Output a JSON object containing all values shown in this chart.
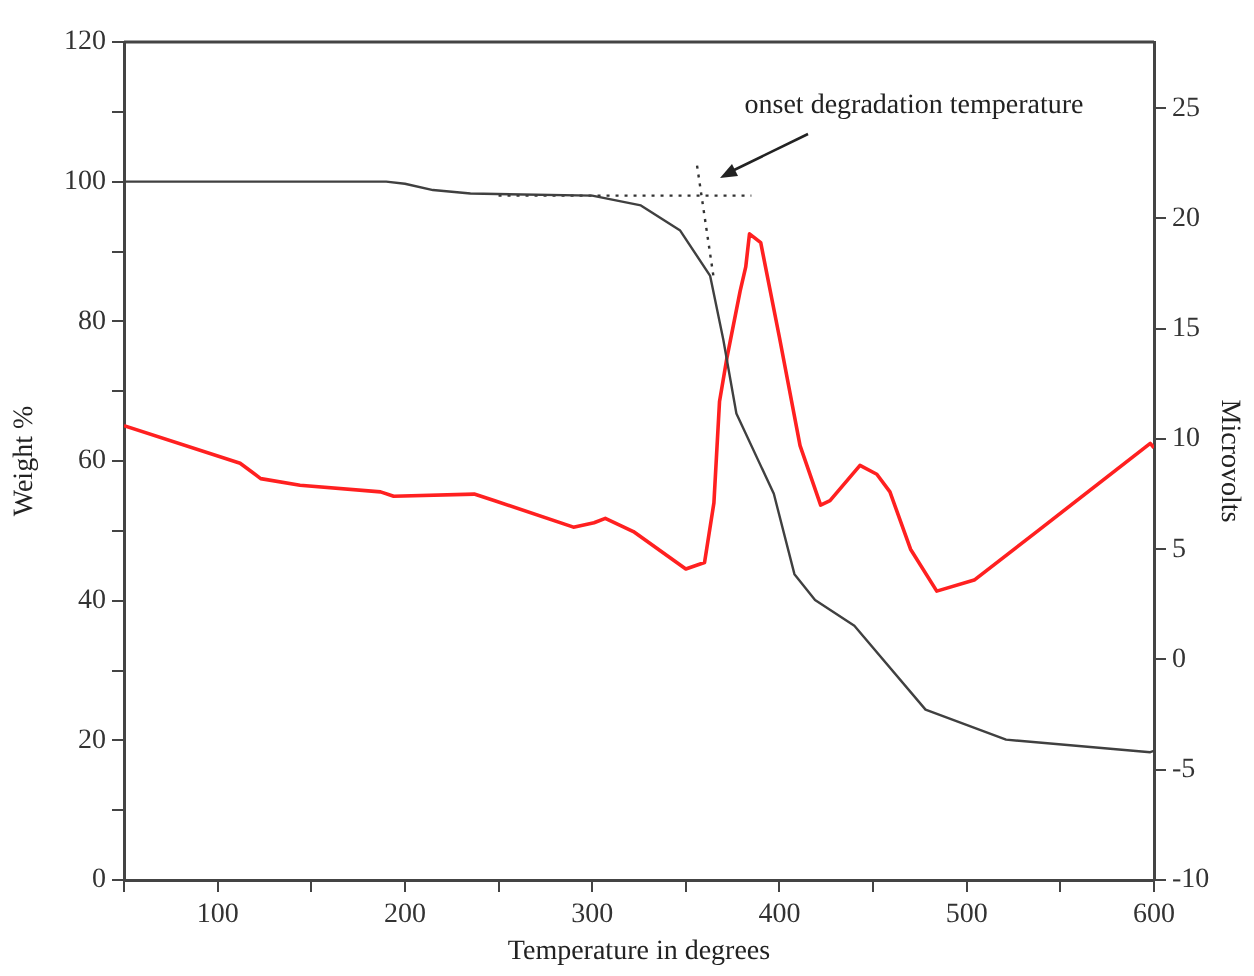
{
  "chart_data": {
    "type": "line",
    "xlabel": "Temperature in degrees",
    "ylabel": "Weight %",
    "y2label": "Microvolts",
    "annotations": [
      "onset degradation temperature"
    ],
    "xlim": [
      50,
      600
    ],
    "xticks": [
      {
        "value": 50,
        "label": null
      },
      100,
      {
        "value": 150,
        "label": null
      },
      200,
      {
        "value": 250,
        "label": null
      },
      300,
      {
        "value": 350,
        "label": null
      },
      400,
      {
        "value": 450,
        "label": null
      },
      500,
      {
        "value": 550,
        "label": null
      },
      600
    ],
    "ylim": [
      0,
      120
    ],
    "yticks": [
      0,
      {
        "value": 10,
        "label": null
      },
      20,
      {
        "value": 30,
        "label": null
      },
      40,
      {
        "value": 50,
        "label": null
      },
      60,
      {
        "value": 70,
        "label": null
      },
      80,
      {
        "value": 90,
        "label": null
      },
      100,
      {
        "value": 110,
        "label": null
      },
      120
    ],
    "y2lim": [
      -10,
      28
    ],
    "y2ticks": [
      -10,
      -5,
      0,
      5,
      10,
      15,
      20,
      25
    ],
    "grid": false,
    "legend": false,
    "marker": "none",
    "series": [
      {
        "color": "#404040",
        "line_style": "solid",
        "x": [
          50,
          190,
          200,
          215,
          235,
          300,
          326,
          347,
          363,
          370,
          377,
          397,
          408,
          419,
          440,
          478,
          521,
          598,
          600
        ],
        "values": [
          100,
          100,
          99.7,
          98.8,
          98.3,
          98,
          96.6,
          93,
          86.5,
          77.4,
          66.8,
          55.3,
          43.8,
          40.1,
          36.4,
          24.4,
          20.1,
          18.3,
          18.5
        ]
      },
      {
        "color": "#ff2020",
        "axis": "y2",
        "line_style": "solid",
        "x": [
          50,
          112,
          123,
          144,
          187,
          194,
          237,
          248,
          290,
          301,
          307,
          322,
          350,
          360,
          365,
          368,
          372,
          379,
          382,
          384,
          390,
          400,
          411,
          422,
          427,
          443,
          452,
          459,
          470,
          484,
          504,
          539,
          598,
          600
        ],
        "values": [
          10.6,
          8.9,
          8.2,
          7.9,
          7.6,
          7.4,
          7.5,
          7.2,
          6.0,
          6.2,
          6.4,
          5.8,
          4.1,
          4.4,
          7.1,
          11.7,
          13.7,
          16.7,
          17.8,
          19.3,
          18.9,
          14.6,
          9.7,
          7.0,
          7.2,
          8.8,
          8.4,
          7.6,
          5.0,
          3.1,
          3.6,
          5.9,
          9.8,
          9.6
        ]
      },
      {
        "color": "#333333",
        "line_style": "dotted",
        "x": [
          250,
          385
        ],
        "values": [
          98,
          98
        ]
      },
      {
        "color": "#333333",
        "line_style": "dotted",
        "x": [
          356,
          365
        ],
        "values": [
          102.3,
          86
        ]
      }
    ]
  }
}
